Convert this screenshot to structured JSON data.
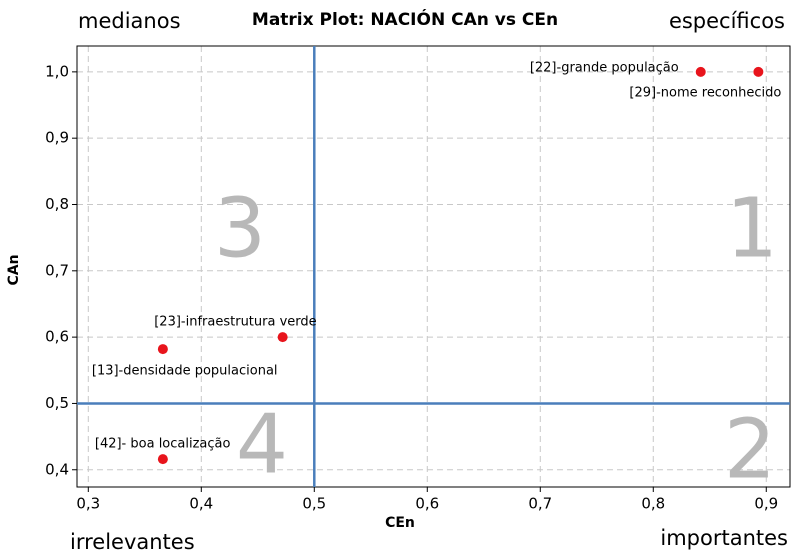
{
  "chart_data": {
    "type": "scatter",
    "title": "Matrix Plot: NACIÓN CAn vs CEn",
    "x_label": "CEn",
    "y_label": "CAn",
    "x": [
      0.842,
      0.893,
      0.472,
      0.366,
      0.366
    ],
    "values": [
      1.0,
      1.0,
      0.6,
      0.582,
      0.416
    ],
    "point_labels": [
      "[22]-grande população",
      "[29]-nome reconhecido",
      "[23]-infraestrutura verde",
      "[13]-densidade populacional",
      "[42]- boa localização"
    ],
    "color": "#e8141c",
    "reference_lines": {
      "x": 0.5,
      "y": 0.5,
      "color": "#4a7ebb"
    },
    "quadrant_labels": [
      "1",
      "2",
      "3",
      "4"
    ],
    "corner_labels": [
      "medianos",
      "específicos",
      "irrelevantes",
      "importantes"
    ],
    "xlim": [
      0.29,
      0.921
    ],
    "ylim": [
      0.374,
      1.039
    ],
    "xticks": [
      {
        "value": 0.3,
        "label": "0,3"
      },
      {
        "value": 0.4,
        "label": "0,4"
      },
      {
        "value": 0.5,
        "label": "0,5"
      },
      {
        "value": 0.6,
        "label": "0,6"
      },
      {
        "value": 0.7,
        "label": "0,7"
      },
      {
        "value": 0.8,
        "label": "0,8"
      },
      {
        "value": 0.9,
        "label": "0,9"
      }
    ],
    "yticks": [
      {
        "value": 0.4,
        "label": "0,4"
      },
      {
        "value": 0.5,
        "label": "0,5"
      },
      {
        "value": 0.6,
        "label": "0,6"
      },
      {
        "value": 0.7,
        "label": "0,7"
      },
      {
        "value": 0.8,
        "label": "0,8"
      },
      {
        "value": 0.9,
        "label": "0,9"
      },
      {
        "value": 1.0,
        "label": "1,0"
      }
    ],
    "grid": true
  }
}
